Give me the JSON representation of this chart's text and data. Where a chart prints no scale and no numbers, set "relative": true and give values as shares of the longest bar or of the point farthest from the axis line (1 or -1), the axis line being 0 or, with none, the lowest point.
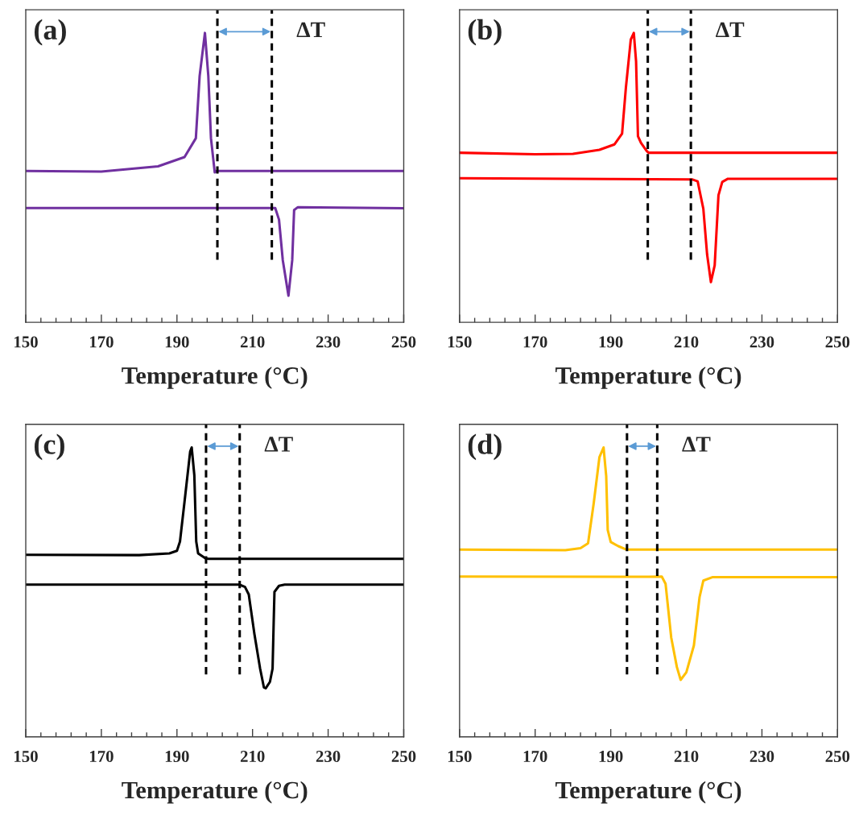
{
  "chart_data": [
    {
      "type": "line",
      "title": "(a)",
      "xlabel": "Temperature (°C)",
      "relative": true,
      "xlim": [
        150,
        250
      ],
      "xticks": [
        150,
        {
          "value": 154,
          "label": null
        },
        {
          "value": 158,
          "label": null
        },
        {
          "value": 162,
          "label": null
        },
        {
          "value": 166,
          "label": null
        },
        170,
        {
          "value": 174,
          "label": null
        },
        {
          "value": 178,
          "label": null
        },
        {
          "value": 182,
          "label": null
        },
        {
          "value": 186,
          "label": null
        },
        190,
        {
          "value": 194,
          "label": null
        },
        {
          "value": 198,
          "label": null
        },
        {
          "value": 202,
          "label": null
        },
        {
          "value": 206,
          "label": null
        },
        210,
        {
          "value": 214,
          "label": null
        },
        {
          "value": 218,
          "label": null
        },
        {
          "value": 222,
          "label": null
        },
        {
          "value": 226,
          "label": null
        },
        230,
        {
          "value": 234,
          "label": null
        },
        {
          "value": 238,
          "label": null
        },
        {
          "value": 242,
          "label": null
        },
        {
          "value": 246,
          "label": null
        },
        250
      ],
      "grid": false,
      "legend": false,
      "series": [
        {
          "color": "#7030a0",
          "x": [
            150,
            170,
            185,
            192,
            195,
            196,
            197.4,
            198.3,
            199,
            200,
            200.5,
            250
          ],
          "values": [
            0.523,
            0.521,
            0.539,
            0.571,
            0.636,
            0.851,
            1,
            0.851,
            0.636,
            0.518,
            0.523,
            0.523
          ]
        },
        {
          "color": "#7030a0",
          "x": [
            150,
            190,
            216,
            217,
            218,
            219.5,
            220.5,
            221,
            222,
            250
          ],
          "values": [
            0.395,
            0.395,
            0.395,
            0.355,
            0.215,
            0.092,
            0.215,
            0.388,
            0.398,
            0.394
          ]
        }
      ],
      "ref_lines": [
        {
          "axis": "x",
          "value": 200.7,
          "color": "#000000",
          "line_style": "dashed"
        },
        {
          "axis": "x",
          "value": 215.1,
          "color": "#000000",
          "line_style": "dashed"
        }
      ],
      "annotations": [
        "ΔT"
      ]
    },
    {
      "type": "line",
      "title": "(b)",
      "xlabel": "Temperature (°C)",
      "relative": true,
      "xlim": [
        150,
        250
      ],
      "xticks": [
        150,
        {
          "value": 154,
          "label": null
        },
        {
          "value": 158,
          "label": null
        },
        {
          "value": 162,
          "label": null
        },
        {
          "value": 166,
          "label": null
        },
        170,
        {
          "value": 174,
          "label": null
        },
        {
          "value": 178,
          "label": null
        },
        {
          "value": 182,
          "label": null
        },
        {
          "value": 186,
          "label": null
        },
        190,
        {
          "value": 194,
          "label": null
        },
        {
          "value": 198,
          "label": null
        },
        {
          "value": 202,
          "label": null
        },
        {
          "value": 206,
          "label": null
        },
        210,
        {
          "value": 214,
          "label": null
        },
        {
          "value": 218,
          "label": null
        },
        {
          "value": 222,
          "label": null
        },
        {
          "value": 226,
          "label": null
        },
        230,
        {
          "value": 234,
          "label": null
        },
        {
          "value": 238,
          "label": null
        },
        {
          "value": 242,
          "label": null
        },
        {
          "value": 246,
          "label": null
        },
        250
      ],
      "grid": false,
      "legend": false,
      "series": [
        {
          "color": "#ff0000",
          "x": [
            150,
            170,
            180,
            187,
            191,
            193,
            194,
            195.3,
            196.1,
            196.7,
            197.2,
            198,
            199.5,
            200,
            250
          ],
          "values": [
            0.586,
            0.581,
            0.582,
            0.596,
            0.615,
            0.652,
            0.81,
            0.977,
            1,
            0.902,
            0.643,
            0.62,
            0.592,
            0.586,
            0.586
          ]
        },
        {
          "color": "#ff0000",
          "x": [
            150,
            190,
            211.5,
            213,
            214.5,
            215.5,
            216.5,
            217.5,
            218.5,
            219.5,
            221,
            250
          ],
          "values": [
            0.498,
            0.495,
            0.494,
            0.487,
            0.392,
            0.234,
            0.139,
            0.197,
            0.439,
            0.485,
            0.496,
            0.496
          ]
        }
      ],
      "ref_lines": [
        {
          "axis": "x",
          "value": 199.8,
          "color": "#000000",
          "line_style": "dashed"
        },
        {
          "axis": "x",
          "value": 211.2,
          "color": "#000000",
          "line_style": "dashed"
        }
      ],
      "annotations": [
        "ΔT"
      ]
    },
    {
      "type": "line",
      "title": "(c)",
      "xlabel": "Temperature (°C)",
      "relative": true,
      "xlim": [
        150,
        250
      ],
      "xticks": [
        150,
        {
          "value": 154,
          "label": null
        },
        {
          "value": 158,
          "label": null
        },
        {
          "value": 162,
          "label": null
        },
        {
          "value": 166,
          "label": null
        },
        170,
        {
          "value": 174,
          "label": null
        },
        {
          "value": 178,
          "label": null
        },
        {
          "value": 182,
          "label": null
        },
        {
          "value": 186,
          "label": null
        },
        190,
        {
          "value": 194,
          "label": null
        },
        {
          "value": 198,
          "label": null
        },
        {
          "value": 202,
          "label": null
        },
        {
          "value": 206,
          "label": null
        },
        210,
        {
          "value": 214,
          "label": null
        },
        {
          "value": 218,
          "label": null
        },
        {
          "value": 222,
          "label": null
        },
        {
          "value": 226,
          "label": null
        },
        230,
        {
          "value": 234,
          "label": null
        },
        {
          "value": 238,
          "label": null
        },
        {
          "value": 242,
          "label": null
        },
        {
          "value": 246,
          "label": null
        },
        250
      ],
      "grid": false,
      "legend": false,
      "series": [
        {
          "color": "#000000",
          "x": [
            150,
            180,
            188,
            190,
            190.8,
            192,
            193.5,
            193.9,
            194.6,
            195.1,
            195.6,
            197.5,
            198.3,
            250
          ],
          "values": [
            0.629,
            0.628,
            0.634,
            0.643,
            0.675,
            0.812,
            0.986,
            1,
            0.904,
            0.675,
            0.634,
            0.617,
            0.615,
            0.615
          ]
        },
        {
          "color": "#000000",
          "x": [
            150,
            206.5,
            208,
            209,
            210.5,
            212,
            213,
            213.5,
            214.6,
            215.3,
            215.6,
            215.8,
            217,
            218.5,
            250
          ],
          "values": [
            0.526,
            0.526,
            0.518,
            0.492,
            0.355,
            0.236,
            0.171,
            0.168,
            0.19,
            0.236,
            0.4,
            0.501,
            0.522,
            0.526,
            0.526
          ]
        }
      ],
      "ref_lines": [
        {
          "axis": "x",
          "value": 197.7,
          "color": "#000000",
          "line_style": "dashed"
        },
        {
          "axis": "x",
          "value": 206.6,
          "color": "#000000",
          "line_style": "dashed"
        }
      ],
      "annotations": [
        "ΔT"
      ]
    },
    {
      "type": "line",
      "title": "(d)",
      "xlabel": "Temperature (°C)",
      "relative": true,
      "xlim": [
        150,
        250
      ],
      "xticks": [
        150,
        {
          "value": 154,
          "label": null
        },
        {
          "value": 158,
          "label": null
        },
        {
          "value": 162,
          "label": null
        },
        {
          "value": 166,
          "label": null
        },
        170,
        {
          "value": 174,
          "label": null
        },
        {
          "value": 178,
          "label": null
        },
        {
          "value": 182,
          "label": null
        },
        {
          "value": 186,
          "label": null
        },
        190,
        {
          "value": 194,
          "label": null
        },
        {
          "value": 198,
          "label": null
        },
        {
          "value": 202,
          "label": null
        },
        {
          "value": 206,
          "label": null
        },
        210,
        {
          "value": 214,
          "label": null
        },
        {
          "value": 218,
          "label": null
        },
        {
          "value": 222,
          "label": null
        },
        {
          "value": 226,
          "label": null
        },
        230,
        {
          "value": 234,
          "label": null
        },
        {
          "value": 238,
          "label": null
        },
        {
          "value": 242,
          "label": null
        },
        {
          "value": 246,
          "label": null
        },
        250
      ],
      "grid": false,
      "legend": false,
      "series": [
        {
          "color": "#ffc000",
          "x": [
            150,
            178,
            182,
            184,
            185.5,
            187,
            188.1,
            188.8,
            189.2,
            190,
            192,
            194.2,
            250
          ],
          "values": [
            0.647,
            0.645,
            0.652,
            0.669,
            0.808,
            0.966,
            1,
            0.901,
            0.715,
            0.673,
            0.659,
            0.647,
            0.647
          ]
        },
        {
          "color": "#ffc000",
          "x": [
            150,
            200,
            203.5,
            204.5,
            206,
            207.5,
            208.5,
            210,
            212,
            213.5,
            214.5,
            217,
            250
          ],
          "values": [
            0.554,
            0.553,
            0.554,
            0.529,
            0.343,
            0.241,
            0.197,
            0.223,
            0.316,
            0.483,
            0.54,
            0.552,
            0.552
          ]
        }
      ],
      "ref_lines": [
        {
          "axis": "x",
          "value": 194.3,
          "color": "#000000",
          "line_style": "dashed"
        },
        {
          "axis": "x",
          "value": 202.3,
          "color": "#000000",
          "line_style": "dashed"
        }
      ],
      "annotations": [
        "ΔT"
      ]
    }
  ]
}
